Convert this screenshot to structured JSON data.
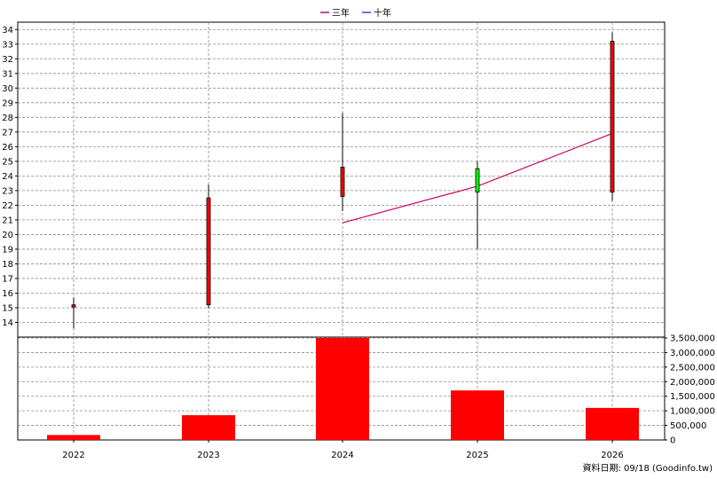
{
  "legend": {
    "three_year": "三年",
    "ten_year": "十年",
    "three_year_color": "#cc0066",
    "ten_year_color": "#6633cc"
  },
  "footer": "資料日期: 09/18  (Goodinfo.tw)",
  "chart_data": {
    "type": "candlestick",
    "categories": [
      "2022",
      "2023",
      "2024",
      "2025",
      "2026"
    ],
    "price_axis": {
      "ylim": [
        13,
        34.5
      ],
      "ticks": [
        14,
        15,
        16,
        17,
        18,
        19,
        20,
        21,
        22,
        23,
        24,
        25,
        26,
        27,
        28,
        29,
        30,
        31,
        32,
        33,
        34
      ]
    },
    "candles": [
      {
        "x": "2022",
        "open": 15.2,
        "close": 15.05,
        "high": 15.7,
        "low": 13.6,
        "color": "#ff0000"
      },
      {
        "x": "2023",
        "open": 15.2,
        "close": 22.5,
        "high": 23.4,
        "low": 14.95,
        "color": "#ff0000"
      },
      {
        "x": "2024",
        "open": 22.6,
        "close": 24.6,
        "high": 28.3,
        "low": 21.6,
        "color": "#ff0000"
      },
      {
        "x": "2025",
        "open": 24.5,
        "close": 22.9,
        "high": 25.0,
        "low": 19.0,
        "color": "#00ff00"
      },
      {
        "x": "2026",
        "open": 22.9,
        "close": 33.2,
        "high": 33.8,
        "low": 22.3,
        "color": "#ff0000"
      }
    ],
    "moving_averages": [
      {
        "legend_key": "three_year",
        "color": "#cc0066",
        "points": [
          [
            "2024",
            20.8
          ],
          [
            "2025",
            23.3
          ],
          [
            "2026",
            26.9
          ]
        ]
      }
    ],
    "volume_axis": {
      "ylim": [
        0,
        3500000
      ],
      "ticks": [
        0,
        500000,
        1000000,
        1500000,
        2000000,
        2500000,
        3000000,
        3500000
      ],
      "tick_labels": [
        "0",
        "500,000",
        "1,000,000",
        "1,500,000",
        "2,000,000",
        "2,500,000",
        "3,000,000",
        "3,500,000"
      ]
    },
    "volumes": [
      {
        "x": "2022",
        "value": 170000
      },
      {
        "x": "2023",
        "value": 850000
      },
      {
        "x": "2024",
        "value": 3500000
      },
      {
        "x": "2025",
        "value": 1700000
      },
      {
        "x": "2026",
        "value": 1100000
      }
    ],
    "volume_color": "#ff0000",
    "grid": true,
    "legend_position": "top-center"
  }
}
